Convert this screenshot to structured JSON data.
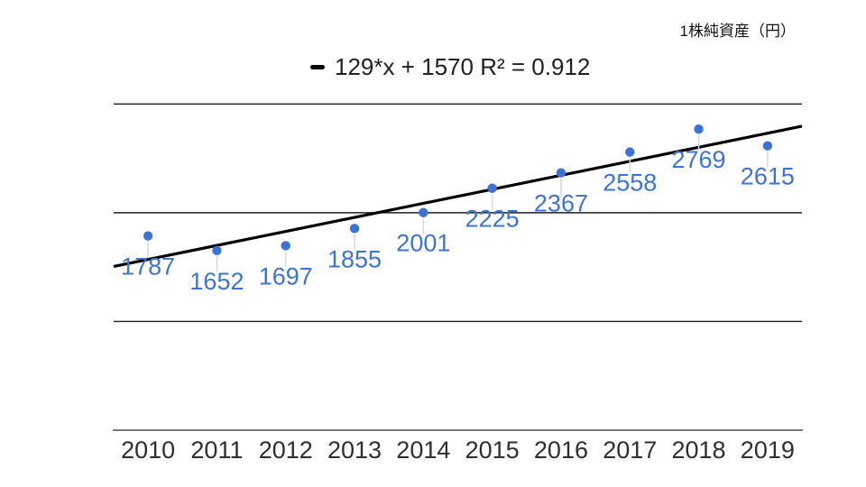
{
  "chart": {
    "title": "1株純資産（円）",
    "legend_label": "129*x + 1570 R² = 0.912"
  },
  "chart_data": {
    "type": "scatter",
    "title": "1株純資産（円）",
    "categories": [
      "2010",
      "2011",
      "2012",
      "2013",
      "2014",
      "2015",
      "2016",
      "2017",
      "2018",
      "2019"
    ],
    "values": [
      1787,
      1652,
      1697,
      1855,
      2001,
      2225,
      2367,
      2558,
      2769,
      2615
    ],
    "data_labels_visible": true,
    "trendline": {
      "slope": 129,
      "intercept": 1570,
      "r2": 0.912,
      "label": "129*x + 1570 R² = 0.912"
    },
    "xlabel": "",
    "ylabel": "",
    "ylim": [
      0,
      3000
    ],
    "gridline_values": [
      1000,
      2000,
      3000
    ],
    "y_axis_labels_visible": false,
    "grid": true,
    "legend_position": "top",
    "colors": {
      "series": "#3c73d7",
      "data_label_text": "#3c73d7",
      "trendline": "#000000",
      "gridline": "#1f1f1f",
      "axis_line": "#7a7a7a",
      "axis_text": "#2f2f2f",
      "leader_line": "#ccd8ee"
    }
  }
}
